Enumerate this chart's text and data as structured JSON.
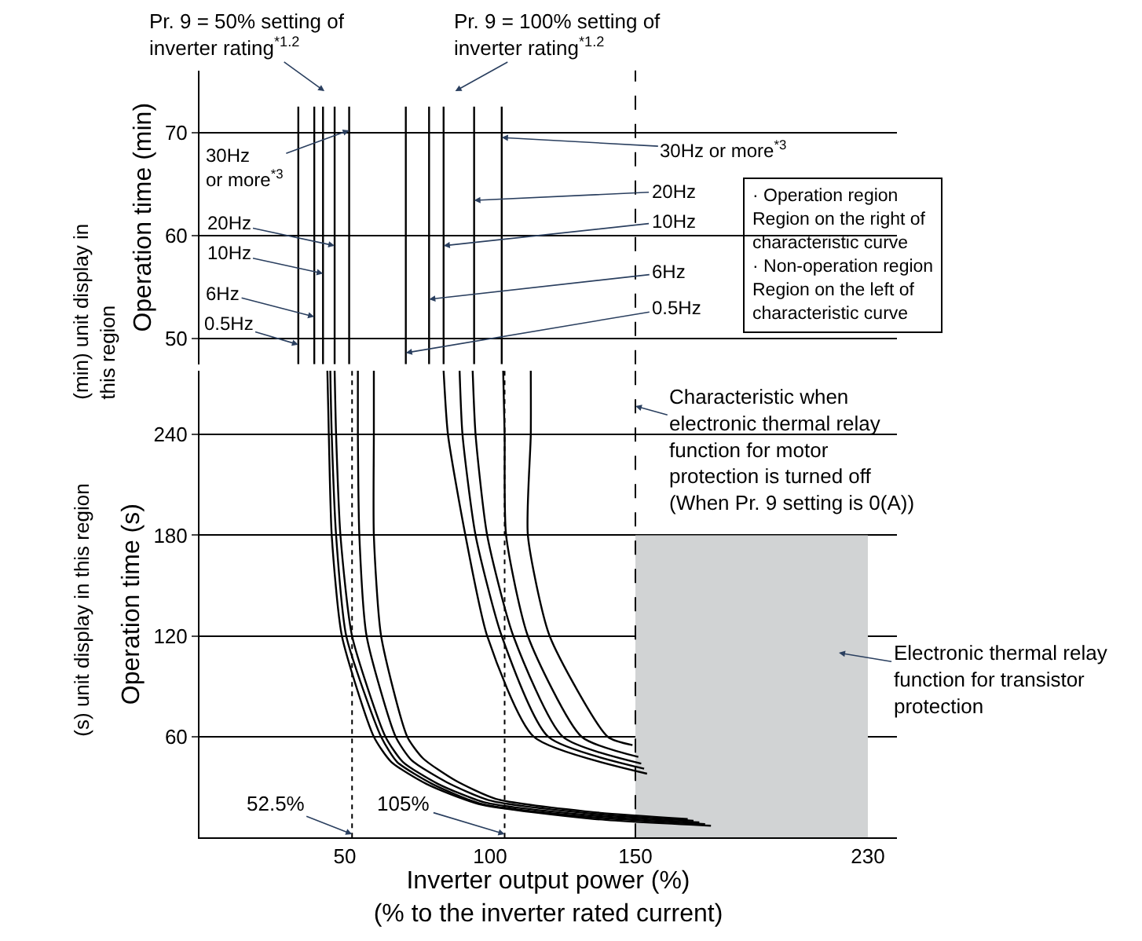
{
  "chart_data": [
    {
      "type": "line",
      "ylabel": "Operation time (min)",
      "xlim": [
        0,
        240
      ],
      "ylim": [
        47.5,
        76
      ],
      "yticks": [
        50,
        60,
        70
      ],
      "tick_labels": "y",
      "grid": "y",
      "series": [
        {
          "color": "#000000",
          "x": [
            34,
            34
          ],
          "values": [
            47.5,
            72.5
          ]
        },
        {
          "color": "#000000",
          "x": [
            39.5,
            39.5
          ],
          "values": [
            47.5,
            72.5
          ]
        },
        {
          "color": "#000000",
          "x": [
            42.5,
            42.5
          ],
          "values": [
            47.5,
            72.5
          ]
        },
        {
          "color": "#000000",
          "x": [
            46.5,
            46.5
          ],
          "values": [
            47.5,
            72.5
          ]
        },
        {
          "color": "#000000",
          "x": [
            51.5,
            51.5
          ],
          "values": [
            47.5,
            72.5
          ]
        },
        {
          "color": "#000000",
          "x": [
            71,
            71
          ],
          "values": [
            47.5,
            72.5
          ]
        },
        {
          "color": "#000000",
          "x": [
            79,
            79
          ],
          "values": [
            47.5,
            72.5
          ]
        },
        {
          "color": "#000000",
          "x": [
            84,
            84
          ],
          "values": [
            47.5,
            72.5
          ]
        },
        {
          "color": "#000000",
          "x": [
            94.5,
            94.5
          ],
          "values": [
            47.5,
            72.5
          ]
        },
        {
          "color": "#000000",
          "x": [
            104,
            104
          ],
          "values": [
            47.5,
            72.5
          ]
        }
      ],
      "ref_lines": [
        {
          "axis": "x",
          "value": 150,
          "line_style": "dashed",
          "color": "#000000"
        }
      ],
      "annotations": [
        "(min) unit display in\nthis region",
        "Pr. 9 = 50% setting of\ninverter rating$^{*1.2}$",
        "Pr. 9 = 100% setting of\ninverter rating$^{*1.2}$",
        {
          "text": "30Hz\nor more$^{*3}$",
          "x": 51.5,
          "y": 70.2
        },
        {
          "text": "20Hz",
          "x": 46.5,
          "y": 59
        },
        {
          "text": "10Hz",
          "x": 42.5,
          "y": 56.3
        },
        {
          "text": "6Hz",
          "x": 39.5,
          "y": 52.1
        },
        {
          "text": "0.5Hz",
          "x": 34,
          "y": 49.4
        },
        {
          "text": "30Hz or more$^{*3}$",
          "x": 104,
          "y": 69.5
        },
        {
          "text": "20Hz",
          "x": 94.5,
          "y": 63.4
        },
        {
          "text": "10Hz",
          "x": 84,
          "y": 59
        },
        {
          "text": "6Hz",
          "x": 79,
          "y": 53.8
        },
        {
          "text": "0.5Hz",
          "x": 71,
          "y": 48.6
        },
        "· Operation region\nRegion on the right of\ncharacteristic curve\n· Non-operation region\nRegion on the left of\ncharacteristic curve"
      ]
    },
    {
      "type": "line",
      "xlabel": "Inverter output power (%)\n(% to the inverter rated current)",
      "ylabel": "Operation time (s)",
      "xlim": [
        0,
        240
      ],
      "xticks": [
        50,
        100,
        150,
        230
      ],
      "ylim": [
        0,
        278
      ],
      "yticks": [
        60,
        120,
        180,
        240
      ],
      "grid": "y",
      "series": [
        {
          "type": "area",
          "color": "#d1d3d4",
          "x": [
            150,
            230
          ],
          "values": [
            180,
            180
          ]
        },
        {
          "color": "#000000",
          "x": [
            44,
            44.5,
            45.5,
            49,
            60,
            66,
            78,
            96,
            136,
            176
          ],
          "values": [
            278,
            240,
            180,
            120,
            60,
            45,
            32,
            20,
            11,
            7
          ]
        },
        {
          "color": "#000000",
          "x": [
            45,
            45.5,
            47,
            50.5,
            62.5,
            68,
            80,
            97,
            136,
            174
          ],
          "values": [
            278,
            240,
            180,
            120,
            60,
            45,
            32,
            20,
            12,
            8
          ]
        },
        {
          "color": "#000000",
          "x": [
            46.5,
            47,
            48.5,
            52.5,
            64,
            70,
            82,
            98,
            136,
            172
          ],
          "values": [
            278,
            240,
            180,
            120,
            60,
            45,
            32,
            21,
            13,
            9
          ]
        },
        {
          "color": "#000000",
          "x": [
            54.5,
            54.5,
            55,
            57.5,
            67.5,
            73,
            85,
            100,
            136,
            170
          ],
          "values": [
            278,
            240,
            180,
            120,
            60,
            46,
            33,
            22,
            14,
            10
          ]
        },
        {
          "color": "#000000",
          "x": [
            60,
            60,
            60,
            62.5,
            71.5,
            77,
            88,
            102,
            136,
            168
          ],
          "values": [
            278,
            240,
            180,
            120,
            60,
            47,
            34,
            23,
            15,
            11
          ]
        },
        {
          "color": "#000000",
          "x": [
            84,
            85.5,
            91.5,
            99,
            115,
            154
          ],
          "values": [
            278,
            240,
            180,
            120,
            60,
            38
          ]
        },
        {
          "color": "#000000",
          "x": [
            89.5,
            90.5,
            95,
            104,
            120,
            153
          ],
          "values": [
            278,
            240,
            180,
            120,
            60,
            41
          ]
        },
        {
          "color": "#000000",
          "x": [
            94,
            95,
            99,
            108,
            125,
            152
          ],
          "values": [
            278,
            240,
            180,
            120,
            60,
            44
          ]
        },
        {
          "color": "#000000",
          "x": [
            104.5,
            105,
            105.5,
            113,
            131.5,
            151
          ],
          "values": [
            278,
            240,
            180,
            120,
            60,
            48
          ]
        },
        {
          "color": "#000000",
          "x": [
            114,
            114,
            113,
            120.5,
            140.5,
            149
          ],
          "values": [
            278,
            240,
            180,
            120,
            60,
            55
          ]
        }
      ],
      "ref_lines": [
        {
          "axis": "x",
          "value": 52.5,
          "label": "52.5%",
          "line_style": "dotted",
          "color": "#000000"
        },
        {
          "axis": "x",
          "value": 105,
          "label": "105%",
          "line_style": "dotted",
          "color": "#000000"
        },
        {
          "axis": "x",
          "value": 150,
          "label": "Characteristic when\nelectronic thermal relay\nfunction for motor\nprotection is turned off\n(When Pr. 9 setting is 0(A))",
          "line_style": "dashed",
          "color": "#000000"
        }
      ],
      "annotations": [
        "(s) unit display in this region",
        "Electronic thermal relay\nfunction for transistor\nprotection"
      ]
    }
  ]
}
